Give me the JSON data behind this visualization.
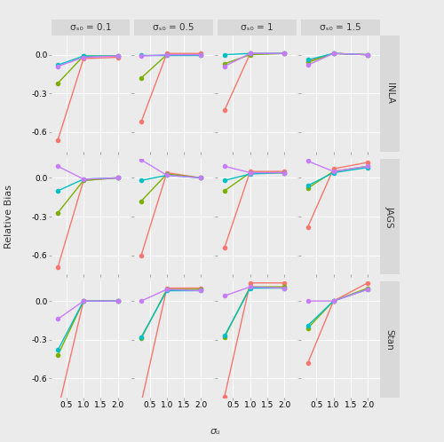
{
  "col_labels": [
    "σₛ₀ = 0.1",
    "σₛ₀ = 0.5",
    "σₛ₀ = 1",
    "σₛ₀ = 1.5"
  ],
  "row_labels": [
    "INLA",
    "JAGS",
    "Stan"
  ],
  "x_values": [
    0.25,
    1.0,
    2.0
  ],
  "xlabel": "σᵤ",
  "ylabel": "Relative Bias",
  "colors": {
    "prior1": "#F8766D",
    "prior2": "#7CAE00",
    "prior3": "#00BFC4",
    "prior4": "#C77CFF"
  },
  "data": {
    "INLA": {
      "sigma_b0_0.1": {
        "prior1": [
          -0.66,
          -0.03,
          -0.02
        ],
        "prior2": [
          -0.22,
          -0.01,
          -0.01
        ],
        "prior3": [
          -0.08,
          -0.01,
          -0.01
        ],
        "prior4": [
          -0.09,
          -0.02,
          -0.01
        ]
      },
      "sigma_b0_0.5": {
        "prior1": [
          -0.52,
          0.01,
          0.01
        ],
        "prior2": [
          -0.18,
          0.0,
          0.0
        ],
        "prior3": [
          0.0,
          0.0,
          0.0
        ],
        "prior4": [
          -0.01,
          0.0,
          0.0
        ]
      },
      "sigma_b0_1": {
        "prior1": [
          -0.43,
          0.01,
          0.01
        ],
        "prior2": [
          -0.07,
          0.0,
          0.01
        ],
        "prior3": [
          0.0,
          0.01,
          0.01
        ],
        "prior4": [
          -0.09,
          0.01,
          0.01
        ]
      },
      "sigma_b0_1.5": {
        "prior1": [
          -0.05,
          0.01,
          0.0
        ],
        "prior2": [
          -0.06,
          0.01,
          0.0
        ],
        "prior3": [
          -0.04,
          0.01,
          0.0
        ],
        "prior4": [
          -0.08,
          0.01,
          0.0
        ]
      }
    },
    "JAGS": {
      "sigma_b0_0.1": {
        "prior1": [
          -0.69,
          -0.02,
          0.0
        ],
        "prior2": [
          -0.27,
          -0.02,
          0.0
        ],
        "prior3": [
          -0.1,
          -0.01,
          0.0
        ],
        "prior4": [
          0.09,
          -0.01,
          0.0
        ]
      },
      "sigma_b0_0.5": {
        "prior1": [
          -0.6,
          0.04,
          0.0
        ],
        "prior2": [
          -0.18,
          0.03,
          0.0
        ],
        "prior3": [
          -0.02,
          0.02,
          0.0
        ],
        "prior4": [
          0.14,
          0.02,
          0.0
        ]
      },
      "sigma_b0_1": {
        "prior1": [
          -0.54,
          0.05,
          0.05
        ],
        "prior2": [
          -0.1,
          0.04,
          0.04
        ],
        "prior3": [
          -0.02,
          0.03,
          0.04
        ],
        "prior4": [
          0.09,
          0.04,
          0.04
        ]
      },
      "sigma_b0_1.5": {
        "prior1": [
          -0.38,
          0.07,
          0.12
        ],
        "prior2": [
          -0.08,
          0.05,
          0.09
        ],
        "prior3": [
          -0.06,
          0.04,
          0.08
        ],
        "prior4": [
          0.13,
          0.05,
          0.09
        ]
      }
    },
    "Stan": {
      "sigma_b0_0.1": {
        "prior1": [
          -0.85,
          0.0,
          0.0
        ],
        "prior2": [
          -0.42,
          0.0,
          0.0
        ],
        "prior3": [
          -0.38,
          0.0,
          0.0
        ],
        "prior4": [
          -0.14,
          0.0,
          0.0
        ]
      },
      "sigma_b0_0.5": {
        "prior1": [
          -0.79,
          0.1,
          0.1
        ],
        "prior2": [
          -0.29,
          0.09,
          0.09
        ],
        "prior3": [
          -0.28,
          0.08,
          0.08
        ],
        "prior4": [
          0.0,
          0.09,
          0.08
        ]
      },
      "sigma_b0_1": {
        "prior1": [
          -0.74,
          0.14,
          0.14
        ],
        "prior2": [
          -0.28,
          0.11,
          0.11
        ],
        "prior3": [
          -0.27,
          0.1,
          0.1
        ],
        "prior4": [
          0.04,
          0.11,
          0.1
        ]
      },
      "sigma_b0_1.5": {
        "prior1": [
          -0.48,
          0.0,
          0.14
        ],
        "prior2": [
          -0.21,
          0.0,
          0.1
        ],
        "prior3": [
          -0.19,
          0.0,
          0.09
        ],
        "prior4": [
          0.0,
          0.0,
          0.09
        ]
      }
    }
  },
  "ylim": [
    -0.75,
    0.15
  ],
  "yticks": [
    0.0,
    -0.3,
    -0.6
  ],
  "xticks": [
    0.5,
    1.0,
    1.5,
    2.0
  ],
  "xlim": [
    0.05,
    2.35
  ],
  "bg_color": "#EBEBEB",
  "grid_color": "#FFFFFF",
  "strip_color": "#D9D9D9",
  "marker_size": 4,
  "linewidth": 1.0,
  "title_fontsize": 7.5,
  "label_fontsize": 8,
  "tick_fontsize": 6.5
}
